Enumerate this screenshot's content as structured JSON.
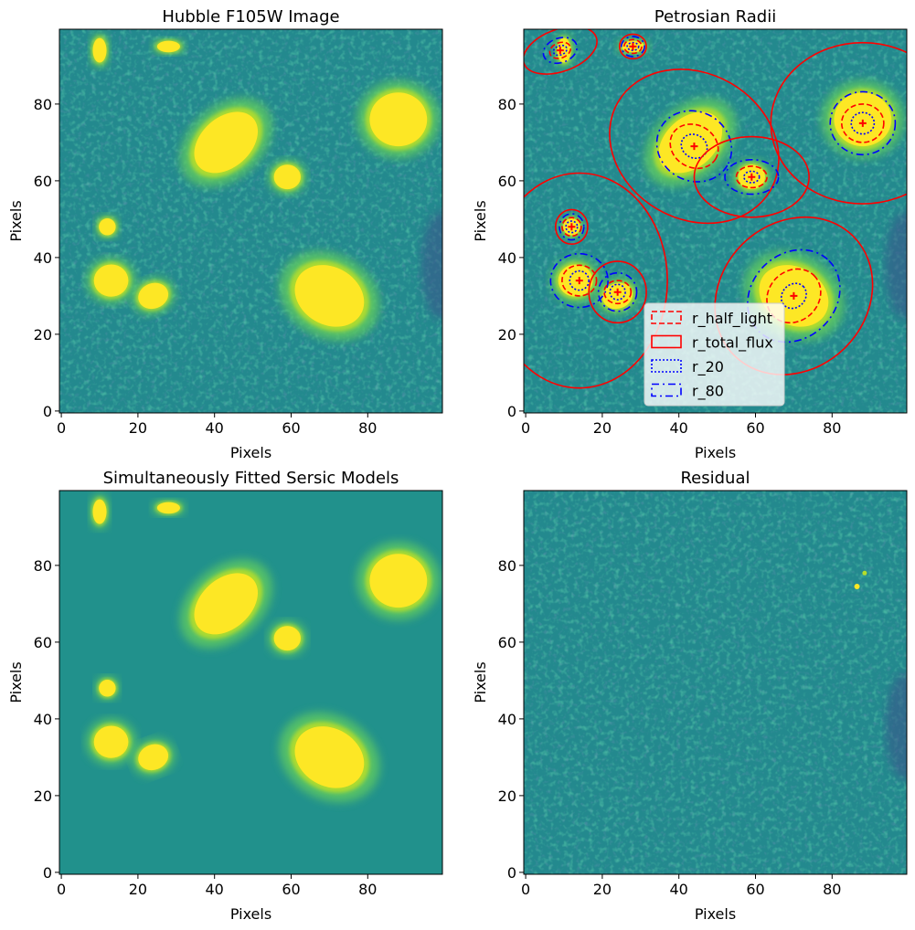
{
  "chart_data": [
    {
      "type": "heatmap",
      "title": "Hubble F105W Image",
      "xlabel": "Pixels",
      "ylabel": "Pixels",
      "xlim": [
        -0.5,
        99.5
      ],
      "ylim": [
        -0.5,
        99.5
      ],
      "xticks": [
        0,
        20,
        40,
        60,
        80
      ],
      "yticks": [
        0,
        20,
        40,
        60,
        80
      ],
      "colormap": "viridis",
      "sources": [
        {
          "x": 10,
          "y": 94,
          "a": 1.8,
          "b": 3.2,
          "angle": 0
        },
        {
          "x": 28,
          "y": 95,
          "a": 3,
          "b": 1.5,
          "angle": 0
        },
        {
          "x": 43,
          "y": 70,
          "a": 9.5,
          "b": 6.5,
          "angle": -42
        },
        {
          "x": 59,
          "y": 61,
          "a": 3.5,
          "b": 3.2,
          "angle": 0
        },
        {
          "x": 88,
          "y": 76,
          "a": 7.5,
          "b": 7,
          "angle": 0
        },
        {
          "x": 12,
          "y": 48,
          "a": 2.2,
          "b": 2.2,
          "angle": 0
        },
        {
          "x": 13,
          "y": 34,
          "a": 4.5,
          "b": 4.2,
          "angle": 0
        },
        {
          "x": 24,
          "y": 30,
          "a": 4,
          "b": 3.3,
          "angle": -20
        },
        {
          "x": 70,
          "y": 30,
          "a": 9.5,
          "b": 7.5,
          "angle": 30
        }
      ]
    },
    {
      "type": "heatmap",
      "title": "Petrosian Radii",
      "xlabel": "Pixels",
      "ylabel": "Pixels",
      "xlim": [
        -0.5,
        99.5
      ],
      "ylim": [
        -0.5,
        99.5
      ],
      "xticks": [
        0,
        20,
        40,
        60,
        80
      ],
      "yticks": [
        0,
        20,
        40,
        60,
        80
      ],
      "colormap": "viridis",
      "legend_position": "lower-center",
      "legend": [
        {
          "label": "r_half_light",
          "color": "#ff0000",
          "style": "dashed"
        },
        {
          "label": "r_total_flux",
          "color": "#ff0000",
          "style": "solid"
        },
        {
          "label": "r_20",
          "color": "#0000ff",
          "style": "dotted"
        },
        {
          "label": "r_80",
          "color": "#0000ff",
          "style": "dashdot"
        }
      ],
      "apertures": [
        {
          "x": 9,
          "y": 94,
          "angle": 110,
          "r_20": [
            1.2,
            1.8
          ],
          "r_half_light": [
            2,
            2.8
          ],
          "r_80": [
            3.2,
            4.5
          ],
          "r_total_flux": [
            5.5,
            10
          ]
        },
        {
          "x": 28,
          "y": 95,
          "angle": 0,
          "r_20": [
            1.5,
            1
          ],
          "r_half_light": [
            2.3,
            1.8
          ],
          "r_80": [
            3,
            2.6
          ],
          "r_total_flux": [
            3.5,
            3.2
          ]
        },
        {
          "x": 44,
          "y": 69,
          "angle": -30,
          "r_20": [
            3.5,
            3
          ],
          "r_half_light": [
            6.5,
            5.5
          ],
          "r_80": [
            10,
            9
          ],
          "r_total_flux": [
            23,
            19
          ]
        },
        {
          "x": 59,
          "y": 61,
          "angle": 0,
          "r_20": [
            2,
            1.5
          ],
          "r_half_light": [
            4,
            2.8
          ],
          "r_80": [
            7,
            4.5
          ],
          "r_total_flux": [
            15,
            10.5
          ]
        },
        {
          "x": 88,
          "y": 75,
          "angle": 0,
          "r_20": [
            3,
            2.8
          ],
          "r_half_light": [
            5.5,
            5
          ],
          "r_80": [
            8.5,
            8.2
          ],
          "r_total_flux": [
            24,
            21
          ]
        },
        {
          "x": 12,
          "y": 48,
          "angle": 0,
          "r_20": [
            1.5,
            1.5
          ],
          "r_half_light": [
            2.5,
            2.4
          ],
          "r_80": [
            3.2,
            3.4
          ],
          "r_total_flux": [
            4.2,
            4.5
          ]
        },
        {
          "x": 14,
          "y": 34,
          "angle": 0,
          "r_20": [
            2.5,
            2.5
          ],
          "r_half_light": [
            4.5,
            4
          ],
          "r_80": [
            7.5,
            7
          ],
          "r_total_flux": [
            23,
            28
          ]
        },
        {
          "x": 24,
          "y": 31,
          "angle": 0,
          "r_20": [
            2,
            2
          ],
          "r_half_light": [
            3.5,
            3
          ],
          "r_80": [
            5,
            5
          ],
          "r_total_flux": [
            7.5,
            8
          ]
        },
        {
          "x": 70,
          "y": 30,
          "angle": 45,
          "r_20": [
            3.5,
            3
          ],
          "r_half_light": [
            7.5,
            6.5
          ],
          "r_80": [
            13,
            11
          ],
          "r_total_flux": [
            22,
            19
          ]
        }
      ]
    },
    {
      "type": "heatmap",
      "title": "Simultaneously Fitted Sersic Models",
      "xlabel": "Pixels",
      "ylabel": "Pixels",
      "xlim": [
        -0.5,
        99.5
      ],
      "ylim": [
        -0.5,
        99.5
      ],
      "xticks": [
        0,
        20,
        40,
        60,
        80
      ],
      "yticks": [
        0,
        20,
        40,
        60,
        80
      ],
      "colormap": "viridis"
    },
    {
      "type": "heatmap",
      "title": "Residual",
      "xlabel": "Pixels",
      "ylabel": "Pixels",
      "xlim": [
        -0.5,
        99.5
      ],
      "ylim": [
        -0.5,
        99.5
      ],
      "xticks": [
        0,
        20,
        40,
        60,
        80
      ],
      "yticks": [
        0,
        20,
        40,
        60,
        80
      ],
      "colormap": "viridis"
    }
  ]
}
